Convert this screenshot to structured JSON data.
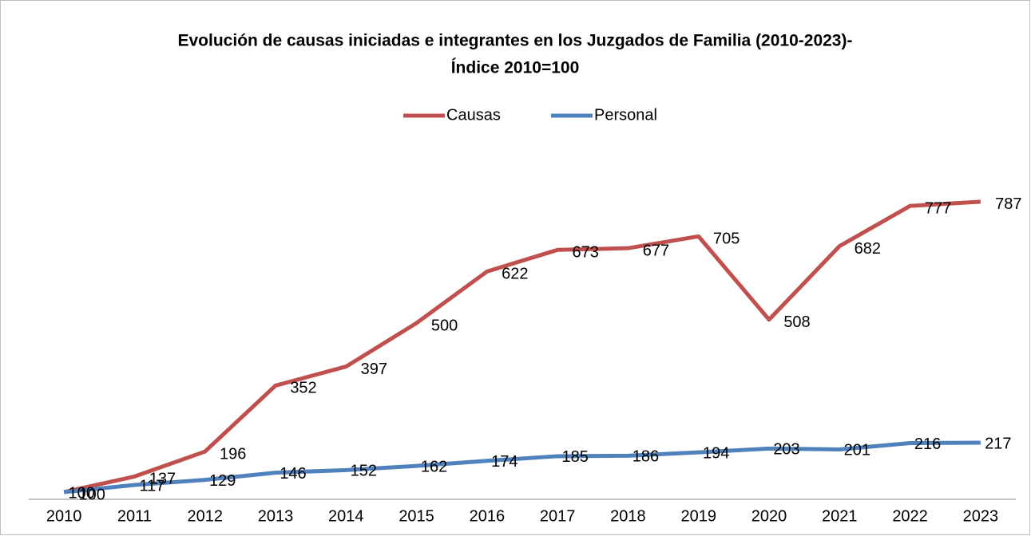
{
  "chart_data": {
    "type": "line",
    "title": [
      "Evolución de causas iniciadas e integrantes en los Juzgados de Familia (2010-2023)-",
      "Índice 2010=100"
    ],
    "categories": [
      "2010",
      "2011",
      "2012",
      "2013",
      "2014",
      "2015",
      "2016",
      "2017",
      "2018",
      "2019",
      "2020",
      "2021",
      "2022",
      "2023"
    ],
    "series": [
      {
        "name": "Causas",
        "color": "#c0504d",
        "values": [
          100,
          137,
          196,
          352,
          397,
          500,
          622,
          673,
          677,
          705,
          508,
          682,
          777,
          787
        ]
      },
      {
        "name": "Personal",
        "color": "#4f81bd",
        "values": [
          100,
          117,
          129,
          146,
          152,
          162,
          174,
          185,
          186,
          194,
          203,
          201,
          216,
          217
        ]
      }
    ],
    "ylim": [
      83,
      900
    ],
    "legend": "top"
  }
}
